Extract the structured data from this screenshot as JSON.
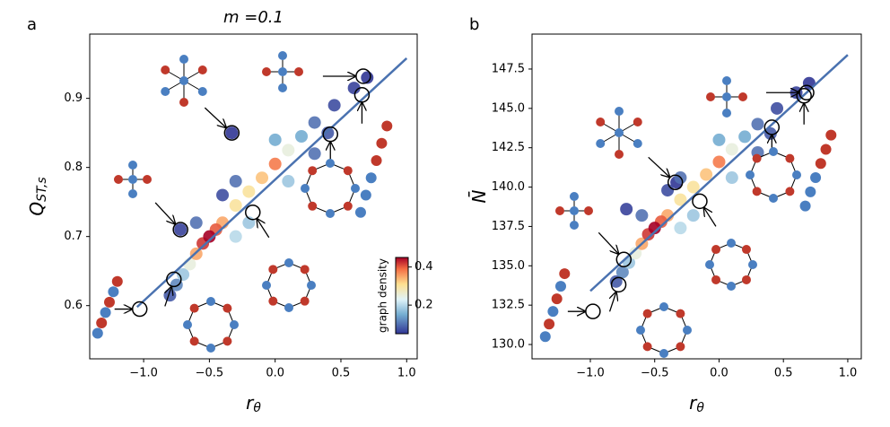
{
  "chart_data": [
    {
      "type": "scatter",
      "panel_label": "a",
      "title": "m =0.1",
      "xlabel": {
        "main": "r",
        "sub": "θ"
      },
      "ylabel": {
        "main": "Q",
        "sub": "ST,s"
      },
      "xlim": [
        -1.41,
        1.08
      ],
      "ylim": [
        0.523,
        0.993
      ],
      "xticks": [
        {
          "value": -1.0,
          "label": "−1.0"
        },
        {
          "value": -0.5,
          "label": "−0.5"
        },
        {
          "value": 0.0,
          "label": "0.0"
        },
        0.5,
        {
          "value": 1.0,
          "label": "1.0"
        }
      ],
      "yticks": [
        0.6,
        0.7,
        0.8,
        0.9
      ],
      "points": {
        "x": [
          -0.55,
          -0.5,
          -0.45,
          -0.6,
          -0.4,
          -0.3,
          -0.2,
          -0.1,
          0.0,
          0.1,
          0.2,
          0.3,
          0.45,
          0.6,
          0.7,
          -0.65,
          -0.7,
          -0.75,
          -0.8,
          -0.3,
          -0.4,
          0.0,
          -0.6,
          -0.3,
          0.1,
          0.3,
          -0.2,
          0.4,
          -0.33,
          -0.72
        ],
        "y": [
          0.69,
          0.7,
          0.71,
          0.675,
          0.72,
          0.745,
          0.765,
          0.785,
          0.805,
          0.825,
          0.845,
          0.865,
          0.89,
          0.915,
          0.93,
          0.66,
          0.645,
          0.63,
          0.615,
          0.78,
          0.76,
          0.84,
          0.72,
          0.7,
          0.78,
          0.82,
          0.72,
          0.85,
          0.85,
          0.71
        ],
        "density": [
          0.42,
          0.45,
          0.4,
          0.35,
          0.35,
          0.3,
          0.3,
          0.33,
          0.38,
          0.25,
          0.15,
          0.1,
          0.07,
          0.06,
          0.05,
          0.25,
          0.18,
          0.12,
          0.08,
          0.1,
          0.07,
          0.15,
          0.1,
          0.2,
          0.18,
          0.1,
          0.18,
          0.08,
          0.05,
          0.06
        ]
      },
      "strips": {
        "x": [
          -1.35,
          -1.32,
          -1.29,
          -1.26,
          -1.23,
          -1.2,
          0.65,
          0.69,
          0.73,
          0.77,
          0.81,
          0.85
        ],
        "y": [
          0.56,
          0.575,
          0.59,
          0.605,
          0.62,
          0.635,
          0.735,
          0.76,
          0.785,
          0.81,
          0.835,
          0.86
        ],
        "colors": [
          "#4a7fc1",
          "#c0392b",
          "#4a7fc1",
          "#c0392b",
          "#4a7fc1",
          "#c0392b",
          "#4a7fc1",
          "#4a7fc1",
          "#4a7fc1",
          "#c0392b",
          "#c0392b",
          "#c0392b"
        ]
      },
      "fit": {
        "x": [
          -1.05,
          1.0
        ],
        "y": [
          0.598,
          0.958
        ],
        "color": "#4a72b0"
      },
      "highlights": {
        "x": [
          -1.03,
          -0.72,
          -0.77,
          -0.33,
          -0.17,
          0.42,
          0.66,
          0.67
        ],
        "y": [
          0.595,
          0.71,
          0.638,
          0.85,
          0.735,
          0.848,
          0.905,
          0.932
        ]
      },
      "colorbar": {
        "label": "graph density",
        "clim": [
          0.05,
          0.45
        ],
        "ticks": [
          0.2,
          0.4
        ]
      }
    },
    {
      "type": "scatter",
      "panel_label": "b",
      "xlabel": {
        "main": "r",
        "sub": "θ"
      },
      "ylabel": {
        "main": "N̄",
        "sub": ""
      },
      "xlim": [
        -1.453,
        1.105
      ],
      "ylim": [
        129.09,
        149.72
      ],
      "xticks": [
        {
          "value": -1.0,
          "label": "−1.0"
        },
        {
          "value": -0.5,
          "label": "−0.5"
        },
        {
          "value": 0.0,
          "label": "0.0"
        },
        0.5,
        {
          "value": 1.0,
          "label": "1.0"
        }
      ],
      "yticks": [
        {
          "value": 130,
          "label": "130.0"
        },
        132.5,
        {
          "value": 135,
          "label": "135.0"
        },
        137.5,
        {
          "value": 140,
          "label": "140.0"
        },
        142.5,
        {
          "value": 145,
          "label": "145.0"
        },
        147.5
      ],
      "points": {
        "x": [
          -0.55,
          -0.5,
          -0.45,
          -0.6,
          -0.4,
          -0.3,
          -0.2,
          -0.1,
          0.0,
          0.1,
          0.2,
          0.3,
          0.45,
          0.6,
          0.7,
          -0.65,
          -0.7,
          -0.75,
          -0.8,
          -0.3,
          -0.4,
          0.0,
          -0.6,
          -0.3,
          0.1,
          0.3,
          -0.2,
          0.4,
          -0.33,
          -0.72
        ],
        "y": [
          137.0,
          137.4,
          137.8,
          136.4,
          138.2,
          139.2,
          140.0,
          140.8,
          141.6,
          142.4,
          143.2,
          144.0,
          145.0,
          146.0,
          146.6,
          135.8,
          135.2,
          134.6,
          134.0,
          140.6,
          139.8,
          143.0,
          138.2,
          137.4,
          140.6,
          142.2,
          138.2,
          143.4,
          140.3,
          138.6
        ],
        "density": [
          0.42,
          0.45,
          0.4,
          0.35,
          0.35,
          0.3,
          0.3,
          0.33,
          0.38,
          0.25,
          0.15,
          0.1,
          0.07,
          0.06,
          0.05,
          0.25,
          0.18,
          0.12,
          0.08,
          0.1,
          0.07,
          0.15,
          0.1,
          0.2,
          0.18,
          0.1,
          0.18,
          0.08,
          0.05,
          0.06
        ]
      },
      "strips": {
        "x": [
          -1.35,
          -1.32,
          -1.29,
          -1.26,
          -1.23,
          -1.2,
          0.67,
          0.71,
          0.75,
          0.79,
          0.83,
          0.87
        ],
        "y": [
          130.5,
          131.3,
          132.1,
          132.9,
          133.7,
          134.5,
          138.8,
          139.7,
          140.6,
          141.5,
          142.4,
          143.3
        ],
        "colors": [
          "#4a7fc1",
          "#c0392b",
          "#4a7fc1",
          "#c0392b",
          "#4a7fc1",
          "#c0392b",
          "#4a7fc1",
          "#4a7fc1",
          "#4a7fc1",
          "#c0392b",
          "#c0392b",
          "#c0392b"
        ]
      },
      "fit": {
        "x": [
          -1.0,
          1.0
        ],
        "y": [
          133.4,
          148.4
        ],
        "color": "#4a72b0"
      },
      "highlights": {
        "x": [
          -0.98,
          -0.74,
          -0.78,
          -0.34,
          -0.15,
          0.41,
          0.66,
          0.68
        ],
        "y": [
          132.1,
          135.4,
          133.8,
          140.3,
          139.1,
          143.8,
          145.8,
          146.0
        ]
      }
    }
  ]
}
